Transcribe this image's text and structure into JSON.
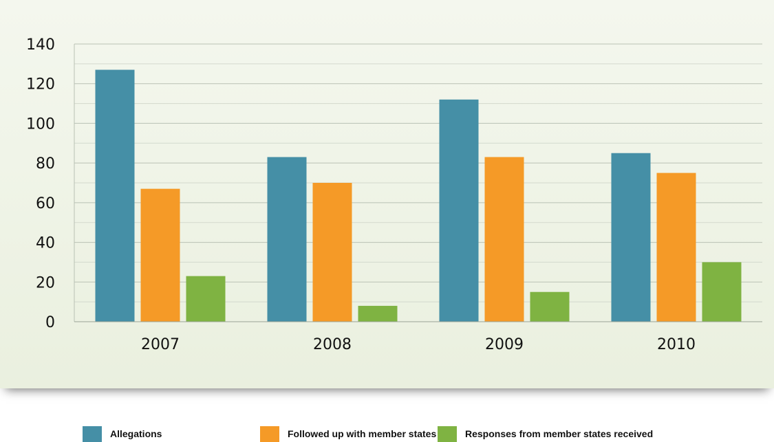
{
  "chart_data": {
    "type": "bar",
    "categories": [
      "2007",
      "2008",
      "2009",
      "2010"
    ],
    "series": [
      {
        "name": "Allegations",
        "values": [
          127,
          83,
          112,
          85
        ],
        "color": "#458fa6"
      },
      {
        "name": "Followed up with member states",
        "values": [
          67,
          70,
          83,
          75
        ],
        "color": "#f59a27"
      },
      {
        "name": "Responses from member states received",
        "values": [
          23,
          8,
          15,
          30
        ],
        "color": "#7fb342"
      }
    ],
    "ylim": [
      0,
      140
    ],
    "yticks": [
      0,
      20,
      40,
      60,
      80,
      100,
      120,
      140
    ],
    "grid": true,
    "legend_position": "bottom",
    "title": "",
    "xlabel": "",
    "ylabel": ""
  }
}
